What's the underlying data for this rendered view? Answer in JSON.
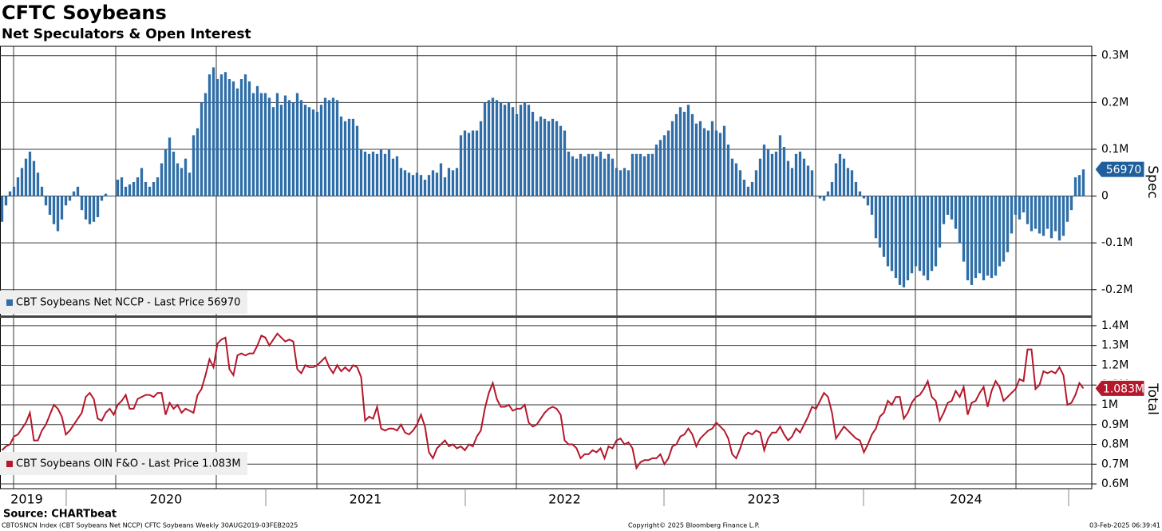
{
  "title": "CFTC Soybeans",
  "subtitle": "Net Speculators & Open Interest",
  "years": [
    "2019",
    "2020",
    "2021",
    "2022",
    "2023",
    "2024"
  ],
  "source": "Source: CHARTbeat",
  "footer": {
    "left": "CBTOSNCN Index (CBT Soybeans Net NCCP) CFTC Soybeans  Weekly 30AUG2019-03FEB2025",
    "center": "Copyright© 2025 Bloomberg Finance L.P.",
    "right": "03-Feb-2025 06:39:41"
  },
  "chart_data": [
    {
      "type": "bar",
      "y_axis_label": "Spec",
      "legend": "CBT Soybeans Net NCCP - Last Price 56970",
      "ylim": [
        -255000,
        320000
      ],
      "yticks": [
        {
          "value": 300000,
          "label": "0.3M"
        },
        {
          "value": 200000,
          "label": "0.2M"
        },
        {
          "value": 100000,
          "label": "0.1M"
        },
        0,
        {
          "value": -100000,
          "label": "-0.1M"
        },
        {
          "value": -200000,
          "label": "-0.2M"
        }
      ],
      "series": [
        {
          "name": "CBT Soybeans Net NCCP",
          "color": "#2f6ea8",
          "values": [
            -55000,
            -20000,
            10000,
            20000,
            40000,
            60000,
            80000,
            95000,
            75000,
            50000,
            20000,
            -20000,
            -40000,
            -60000,
            -75000,
            -50000,
            -20000,
            -10000,
            10000,
            20000,
            -30000,
            -50000,
            -60000,
            -55000,
            -45000,
            -10000,
            5000,
            0,
            0,
            35000,
            40000,
            20000,
            25000,
            30000,
            40000,
            60000,
            30000,
            20000,
            30000,
            40000,
            70000,
            100000,
            125000,
            95000,
            70000,
            60000,
            80000,
            50000,
            130000,
            145000,
            200000,
            220000,
            260000,
            275000,
            250000,
            260000,
            265000,
            250000,
            245000,
            230000,
            250000,
            260000,
            245000,
            220000,
            235000,
            220000,
            220000,
            210000,
            190000,
            220000,
            195000,
            215000,
            205000,
            200000,
            220000,
            205000,
            195000,
            190000,
            185000,
            180000,
            195000,
            210000,
            205000,
            210000,
            205000,
            170000,
            160000,
            165000,
            165000,
            150000,
            100000,
            95000,
            90000,
            95000,
            90000,
            100000,
            90000,
            100000,
            80000,
            85000,
            60000,
            55000,
            50000,
            45000,
            50000,
            45000,
            35000,
            45000,
            55000,
            50000,
            70000,
            40000,
            60000,
            55000,
            60000,
            130000,
            140000,
            135000,
            140000,
            140000,
            160000,
            200000,
            205000,
            210000,
            205000,
            200000,
            195000,
            200000,
            190000,
            175000,
            195000,
            200000,
            195000,
            180000,
            160000,
            170000,
            165000,
            160000,
            165000,
            160000,
            150000,
            140000,
            95000,
            85000,
            80000,
            90000,
            85000,
            90000,
            90000,
            85000,
            95000,
            80000,
            90000,
            80000,
            60000,
            55000,
            60000,
            55000,
            90000,
            90000,
            90000,
            85000,
            90000,
            90000,
            110000,
            120000,
            130000,
            140000,
            160000,
            175000,
            190000,
            180000,
            195000,
            175000,
            155000,
            160000,
            145000,
            140000,
            160000,
            140000,
            135000,
            150000,
            110000,
            80000,
            70000,
            55000,
            35000,
            20000,
            30000,
            55000,
            80000,
            110000,
            100000,
            90000,
            95000,
            130000,
            105000,
            75000,
            60000,
            90000,
            95000,
            80000,
            65000,
            55000,
            0,
            -5000,
            -10000,
            10000,
            30000,
            70000,
            90000,
            80000,
            60000,
            55000,
            30000,
            10000,
            -5000,
            -20000,
            -40000,
            -90000,
            -110000,
            -130000,
            -150000,
            -160000,
            -175000,
            -190000,
            -195000,
            -180000,
            -165000,
            -150000,
            -160000,
            -170000,
            -180000,
            -160000,
            -150000,
            -110000,
            -60000,
            -40000,
            -50000,
            -70000,
            -100000,
            -140000,
            -180000,
            -190000,
            -175000,
            -165000,
            -180000,
            -170000,
            -175000,
            -170000,
            -150000,
            -140000,
            -120000,
            -80000,
            -40000,
            -50000,
            -35000,
            -60000,
            -75000,
            -70000,
            -80000,
            -85000,
            -70000,
            -90000,
            -75000,
            -95000,
            -85000,
            -55000,
            -30000,
            40000,
            45000,
            56970
          ]
        }
      ]
    },
    {
      "type": "line",
      "y_axis_label": "Total",
      "legend": "CBT Soybeans OIN F&O - Last Price 1.083M",
      "last_label": "1.083M",
      "ylim": [
        576000,
        1440000
      ],
      "yticks": [
        {
          "value": 1400000,
          "label": "1.4M"
        },
        {
          "value": 1300000,
          "label": "1.3M"
        },
        {
          "value": 1200000,
          "label": "1.2M"
        },
        {
          "value": 1100000,
          "label": "1.1M"
        },
        {
          "value": 1000000,
          "label": "1M"
        },
        {
          "value": 900000,
          "label": "0.9M"
        },
        {
          "value": 800000,
          "label": "0.8M"
        },
        {
          "value": 700000,
          "label": "0.7M"
        },
        {
          "value": 600000,
          "label": "0.6M"
        }
      ],
      "series": [
        {
          "name": "CBT Soybeans OIN F&O",
          "color": "#b5172b",
          "values": [
            770000,
            790000,
            800000,
            840000,
            850000,
            880000,
            910000,
            960000,
            820000,
            820000,
            870000,
            900000,
            950000,
            1000000,
            980000,
            940000,
            850000,
            870000,
            900000,
            930000,
            960000,
            1040000,
            1060000,
            1030000,
            930000,
            920000,
            960000,
            980000,
            950000,
            1000000,
            1020000,
            1050000,
            980000,
            980000,
            1030000,
            1040000,
            1050000,
            1050000,
            1040000,
            1060000,
            1060000,
            950000,
            1010000,
            980000,
            1000000,
            960000,
            980000,
            970000,
            960000,
            1050000,
            1080000,
            1150000,
            1230000,
            1190000,
            1310000,
            1330000,
            1340000,
            1180000,
            1150000,
            1250000,
            1260000,
            1250000,
            1260000,
            1260000,
            1300000,
            1350000,
            1340000,
            1300000,
            1330000,
            1360000,
            1340000,
            1320000,
            1330000,
            1320000,
            1180000,
            1160000,
            1200000,
            1190000,
            1190000,
            1200000,
            1220000,
            1240000,
            1190000,
            1160000,
            1200000,
            1170000,
            1190000,
            1170000,
            1200000,
            1190000,
            1140000,
            920000,
            940000,
            930000,
            990000,
            880000,
            870000,
            880000,
            880000,
            870000,
            900000,
            860000,
            850000,
            870000,
            900000,
            950000,
            890000,
            760000,
            730000,
            780000,
            800000,
            820000,
            790000,
            800000,
            780000,
            790000,
            770000,
            800000,
            790000,
            840000,
            870000,
            980000,
            1060000,
            1110000,
            1030000,
            990000,
            990000,
            1000000,
            970000,
            980000,
            980000,
            1000000,
            910000,
            890000,
            900000,
            930000,
            960000,
            980000,
            990000,
            980000,
            950000,
            820000,
            800000,
            800000,
            780000,
            730000,
            750000,
            750000,
            770000,
            760000,
            780000,
            730000,
            790000,
            780000,
            820000,
            830000,
            800000,
            810000,
            780000,
            680000,
            710000,
            720000,
            720000,
            730000,
            730000,
            750000,
            700000,
            730000,
            790000,
            800000,
            840000,
            850000,
            880000,
            850000,
            790000,
            830000,
            850000,
            870000,
            880000,
            910000,
            890000,
            870000,
            830000,
            750000,
            730000,
            780000,
            840000,
            860000,
            850000,
            870000,
            860000,
            770000,
            830000,
            860000,
            860000,
            890000,
            850000,
            820000,
            840000,
            880000,
            860000,
            900000,
            940000,
            990000,
            980000,
            1020000,
            1060000,
            1040000,
            960000,
            830000,
            860000,
            890000,
            870000,
            850000,
            830000,
            820000,
            760000,
            800000,
            850000,
            880000,
            940000,
            960000,
            1020000,
            1000000,
            1040000,
            1040000,
            930000,
            960000,
            1010000,
            1040000,
            1050000,
            1080000,
            1120000,
            1040000,
            1020000,
            920000,
            960000,
            1010000,
            1020000,
            1070000,
            1040000,
            1090000,
            950000,
            1010000,
            1020000,
            1060000,
            1090000,
            990000,
            1070000,
            1120000,
            1090000,
            1020000,
            1040000,
            1060000,
            1080000,
            1130000,
            1120000,
            1280000,
            1280000,
            1080000,
            1100000,
            1170000,
            1160000,
            1170000,
            1160000,
            1190000,
            1150000,
            1000000,
            1010000,
            1050000,
            1110000,
            1083000
          ]
        }
      ]
    }
  ]
}
